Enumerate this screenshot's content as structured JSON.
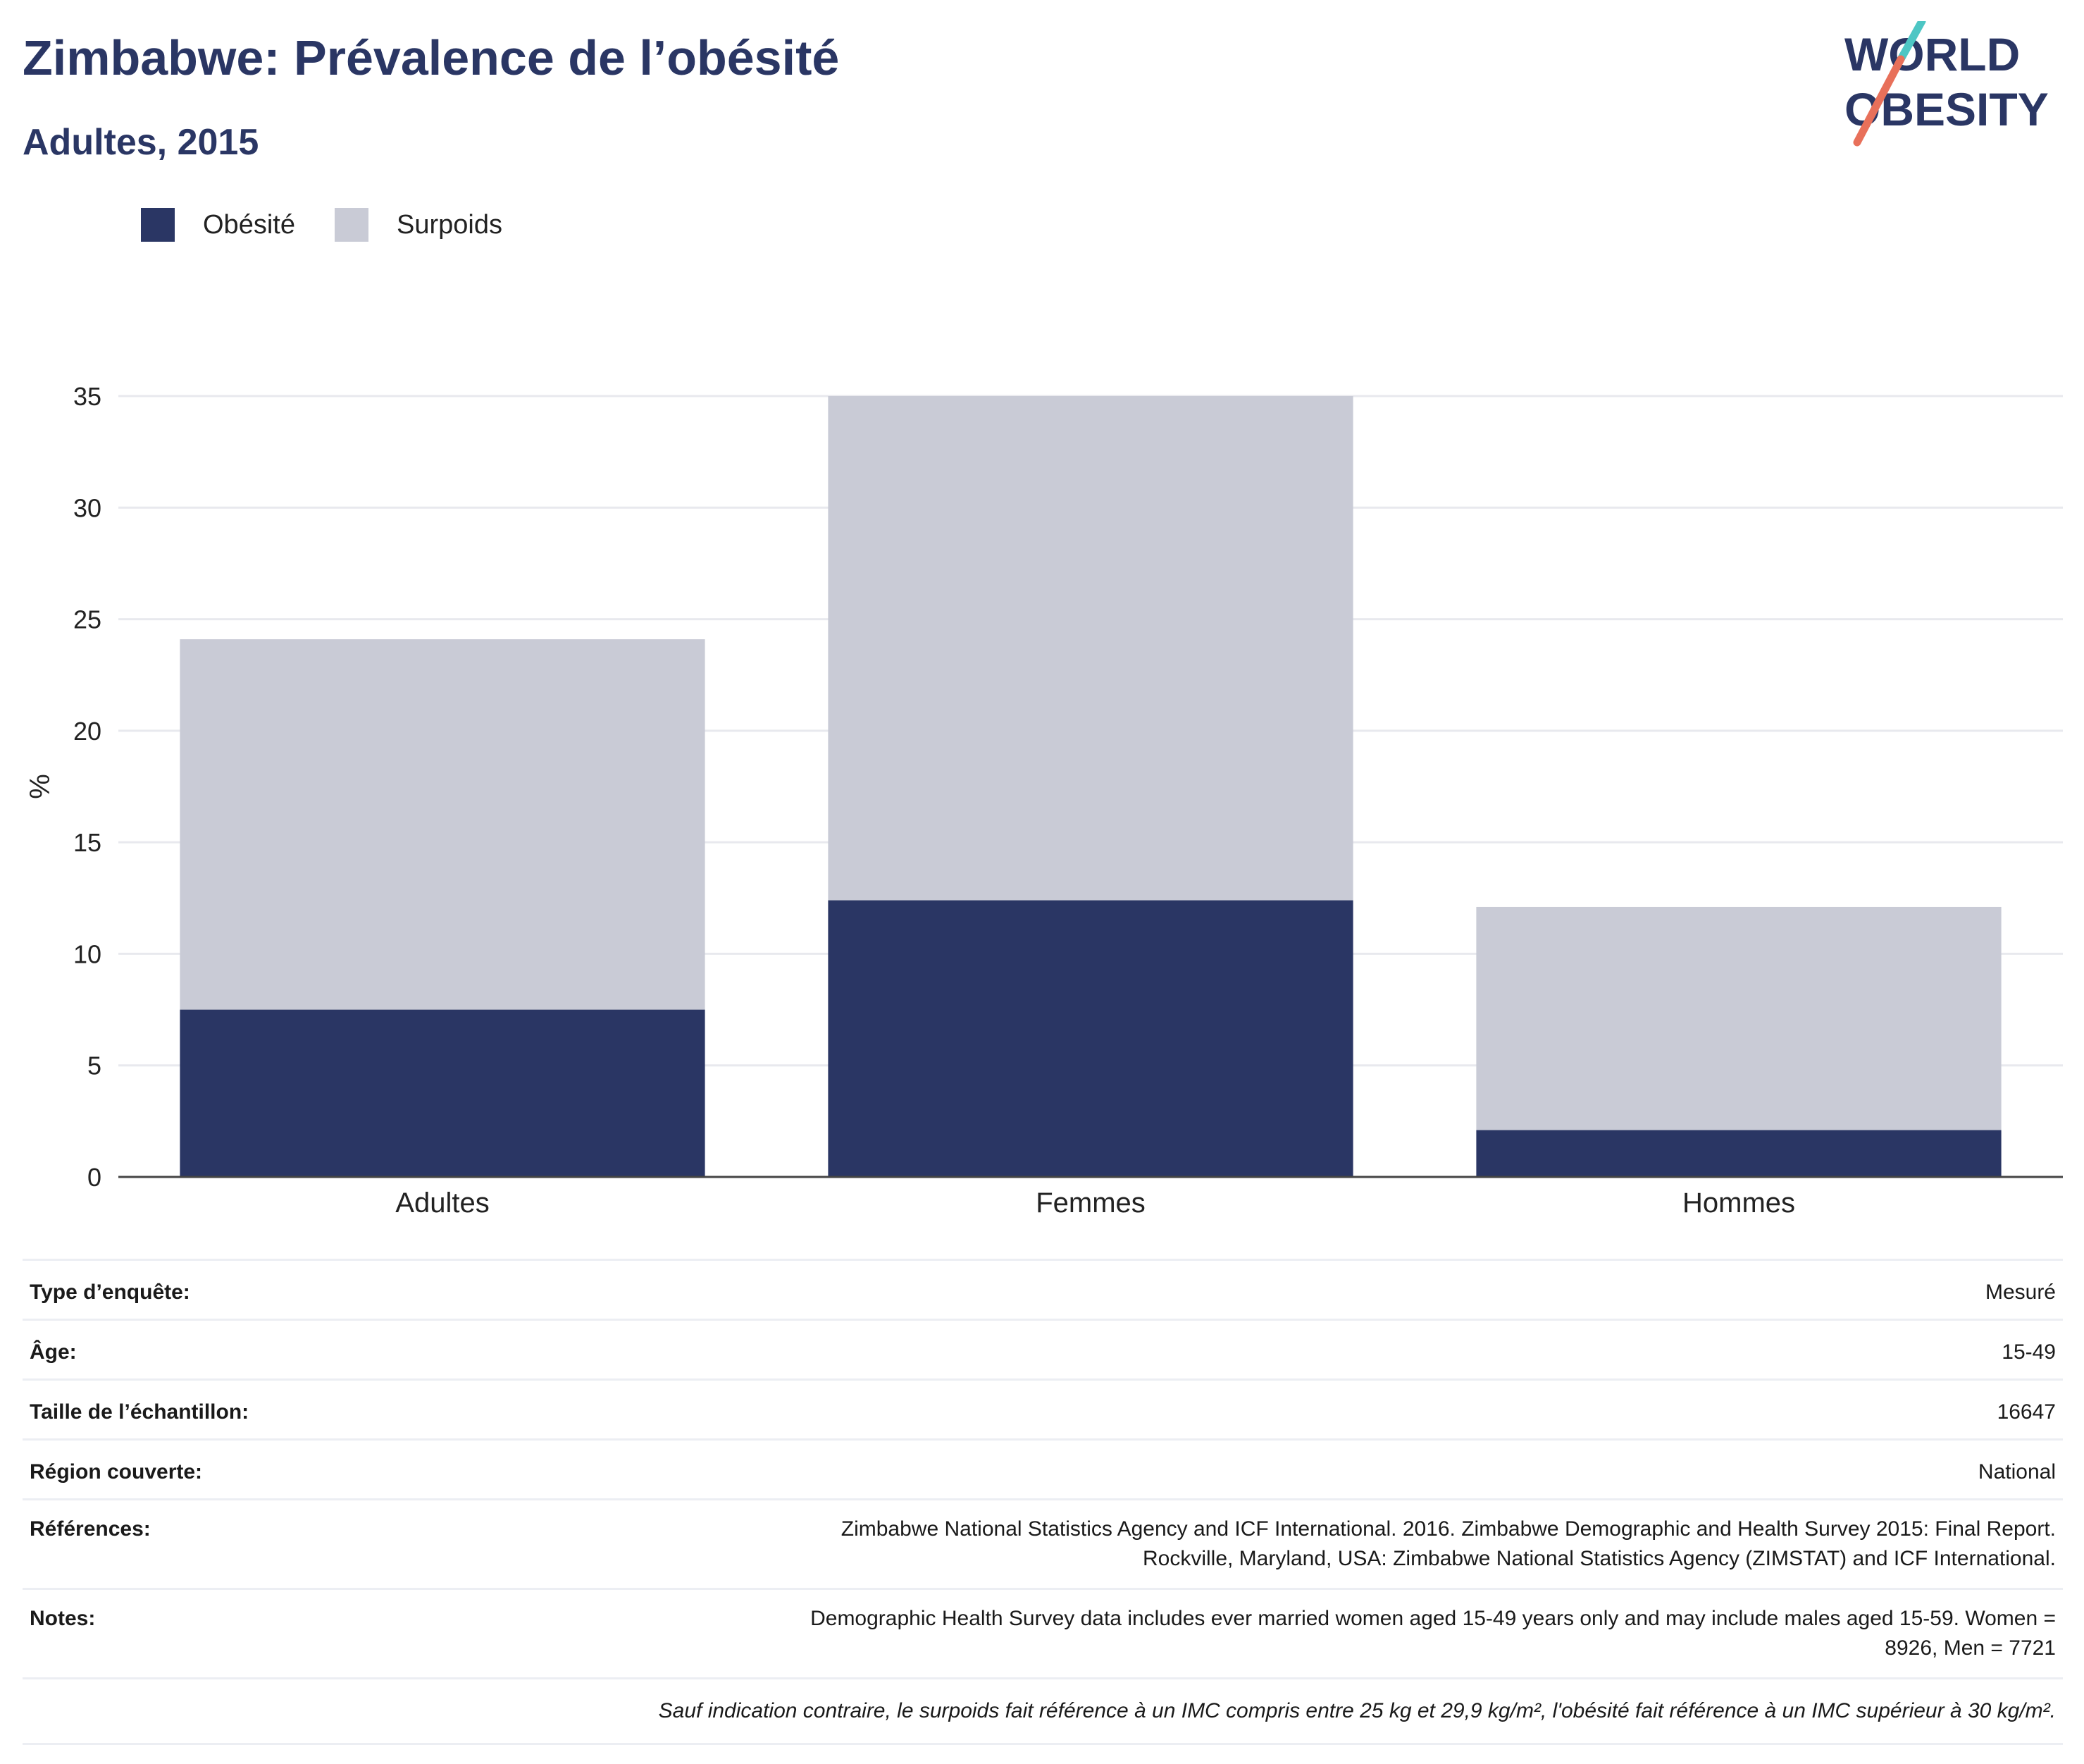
{
  "header": {
    "title": "Zimbabwe: Prévalence de l’obésité",
    "subtitle": "Adultes, 2015"
  },
  "logo": {
    "line1": "WORLD",
    "line2": "OBESITY"
  },
  "legend": [
    {
      "label": "Obésité",
      "color": "#2a3664"
    },
    {
      "label": "Surpoids",
      "color": "#c9cbd6"
    }
  ],
  "chart_data": {
    "type": "bar",
    "stacked": true,
    "categories": [
      "Adultes",
      "Femmes",
      "Hommes"
    ],
    "series": [
      {
        "name": "Obésité",
        "color": "#2a3664",
        "values": [
          7.5,
          12.4,
          2.1
        ]
      },
      {
        "name": "Surpoids",
        "color": "#c9cbd6",
        "values": [
          16.6,
          22.6,
          10.0
        ]
      }
    ],
    "ylabel": "%",
    "ylim": [
      0,
      35
    ],
    "yticks": [
      0,
      5,
      10,
      15,
      20,
      25,
      30,
      35
    ],
    "grid": true,
    "legend_position": "top-left"
  },
  "info": [
    {
      "key": "Type d’enquête:",
      "value": "Mesuré"
    },
    {
      "key": "Âge:",
      "value": "15-49"
    },
    {
      "key": "Taille de l’échantillon:",
      "value": "16647"
    },
    {
      "key": "Région couverte:",
      "value": "National"
    },
    {
      "key": "Références:",
      "value_lines": [
        "Zimbabwe National Statistics Agency and ICF International. 2016. Zimbabwe Demographic and Health Survey 2015: Final Report.",
        "Rockville, Maryland, USA: Zimbabwe National Statistics Agency (ZIMSTAT) and ICF International."
      ]
    },
    {
      "key": "Notes:",
      "value_lines": [
        "Demographic Health Survey data includes ever married women aged 15-49 years only and may include males aged 15-59. Women =",
        "8926, Men = 7721"
      ]
    }
  ],
  "footnote": "Sauf indication contraire, le surpoids fait référence à un IMC compris entre 25 kg et 29,9 kg/m², l'obésité fait référence à un IMC supérieur à 30 kg/m²."
}
